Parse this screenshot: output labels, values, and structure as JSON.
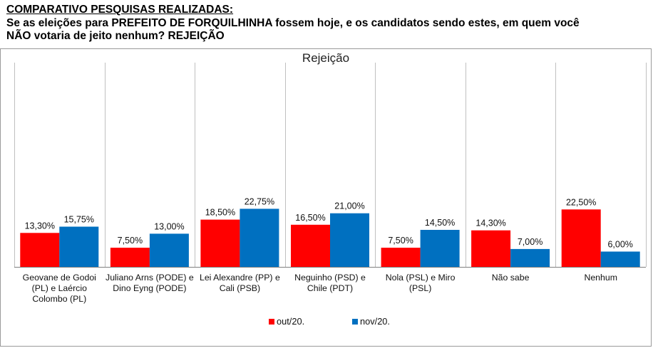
{
  "header": {
    "title": "COMPARATIVO PESQUISAS REALIZADAS:",
    "question_line1": "Se as eleições para PREFEITO DE FORQUILHINHA fossem hoje, e os candidatos sendo estes, em quem você",
    "question_line2": "NÃO votaria de jeito nenhum? REJEIÇÃO"
  },
  "colors": {
    "series1": "#ff0000",
    "series2": "#0070c0",
    "gridline": "#c0c0c0"
  },
  "chart_data": {
    "type": "bar",
    "title": "Rejeição",
    "categories": [
      [
        "Geovane de Godoi",
        "(PL) e Laércio",
        "Colombo (PL)"
      ],
      [
        "Juliano Arns (PODE) e",
        "Dino Eyng (PODE)"
      ],
      [
        "Lei Alexandre (PP) e",
        "Cali (PSB)"
      ],
      [
        "Neguinho (PSD) e",
        "Chile (PDT)"
      ],
      [
        "Nola (PSL) e Miro",
        "(PSL)"
      ],
      [
        "Não sabe"
      ],
      [
        "Nenhum"
      ]
    ],
    "series": [
      {
        "name": "out/20.",
        "values": [
          13.3,
          7.5,
          18.5,
          16.5,
          7.5,
          14.3,
          22.5
        ],
        "labels": [
          "13,30%",
          "7,50%",
          "18,50%",
          "16,50%",
          "7,50%",
          "14,30%",
          "22,50%"
        ]
      },
      {
        "name": "nov/20.",
        "values": [
          15.75,
          13.0,
          22.75,
          21.0,
          14.5,
          7.0,
          6.0
        ],
        "labels": [
          "15,75%",
          "13,00%",
          "22,75%",
          "21,00%",
          "14,50%",
          "7,00%",
          "6,00%"
        ]
      }
    ],
    "ylim": [
      0,
      80
    ],
    "legend_position": "bottom",
    "grid": "vertical category separators"
  }
}
